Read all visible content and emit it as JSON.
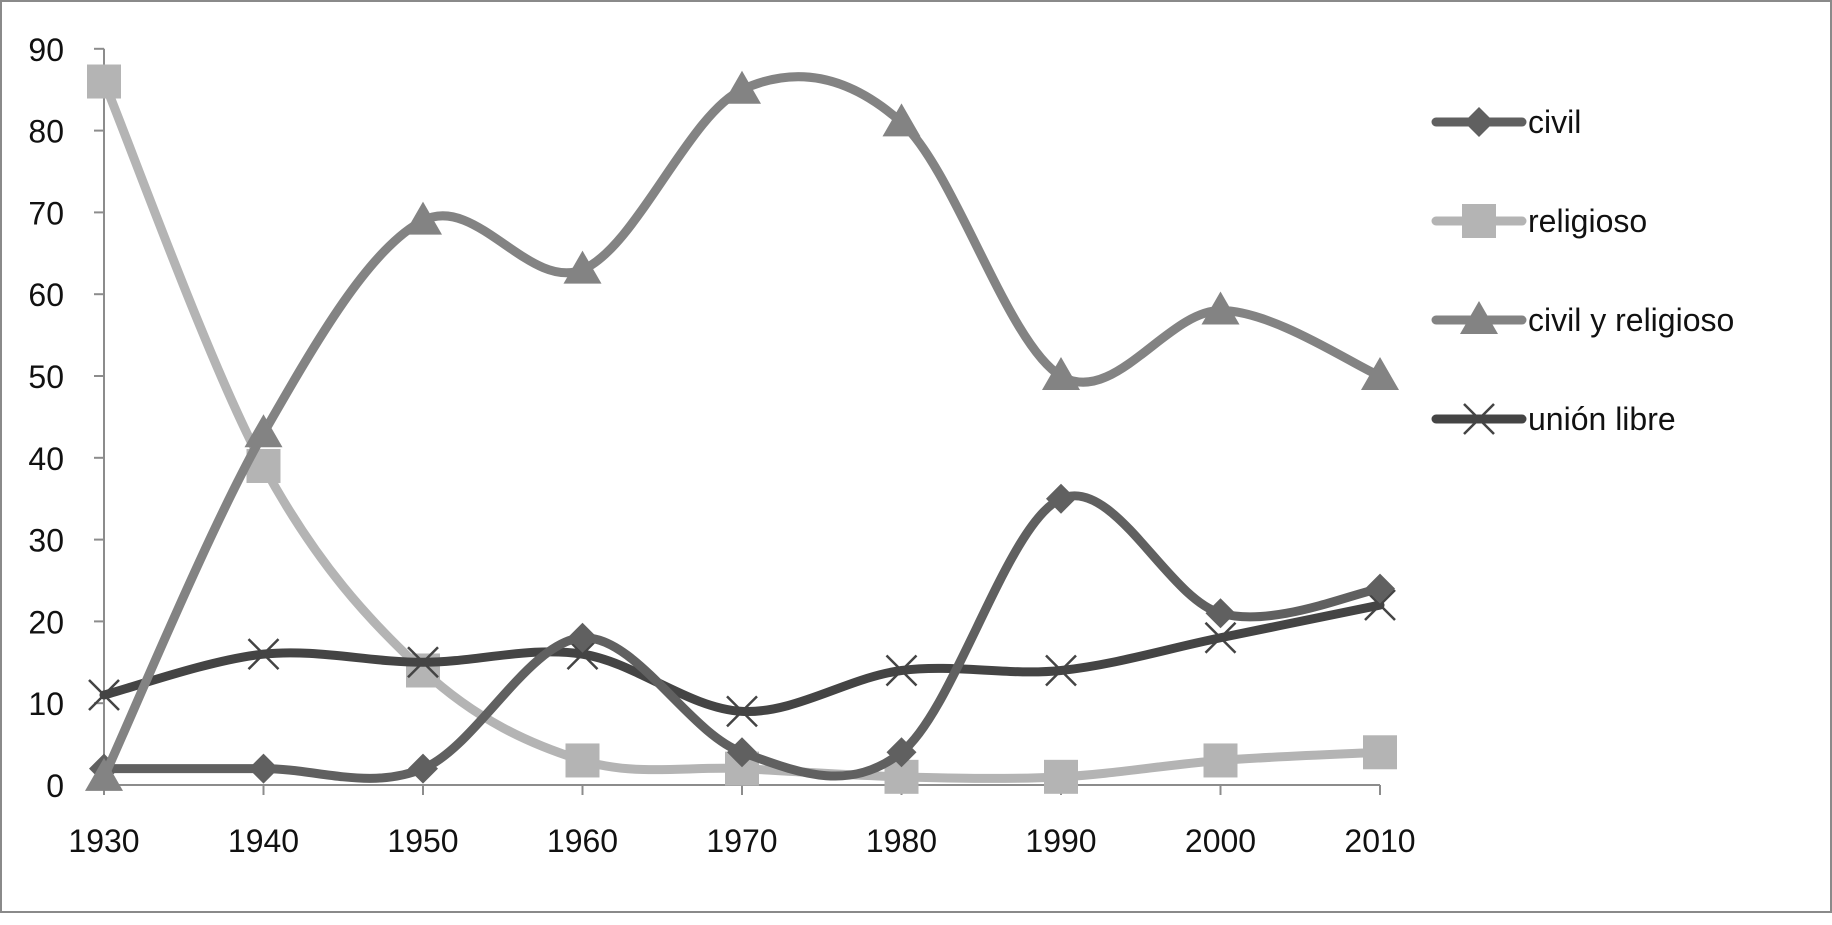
{
  "chart_data": {
    "type": "line",
    "title": "",
    "xlabel": "",
    "ylabel": "",
    "x": [
      "1930",
      "1940",
      "1950",
      "1960",
      "1970",
      "1980",
      "1990",
      "2000",
      "2010"
    ],
    "y_ticks": [
      "0",
      "10",
      "20",
      "30",
      "40",
      "50",
      "60",
      "70",
      "80",
      "90"
    ],
    "ylim": [
      0,
      90
    ],
    "grid": false,
    "legend_position": "right",
    "smooth": true,
    "series": [
      {
        "name": "civil",
        "values": [
          2,
          2,
          2,
          18,
          4,
          4,
          35,
          21,
          24
        ],
        "color": "#606060",
        "marker": "diamond"
      },
      {
        "name": "religioso",
        "values": [
          86,
          39,
          14,
          3,
          2,
          1,
          1,
          3,
          4
        ],
        "color": "#b4b4b4",
        "marker": "square"
      },
      {
        "name": "civil y religioso",
        "values": [
          1,
          43,
          69,
          63,
          85,
          81,
          50,
          58,
          50
        ],
        "color": "#838383",
        "marker": "triangle"
      },
      {
        "name": "unión libre",
        "values": [
          11,
          16,
          15,
          16,
          9,
          14,
          14,
          18,
          22
        ],
        "color": "#444444",
        "marker": "x"
      }
    ]
  }
}
